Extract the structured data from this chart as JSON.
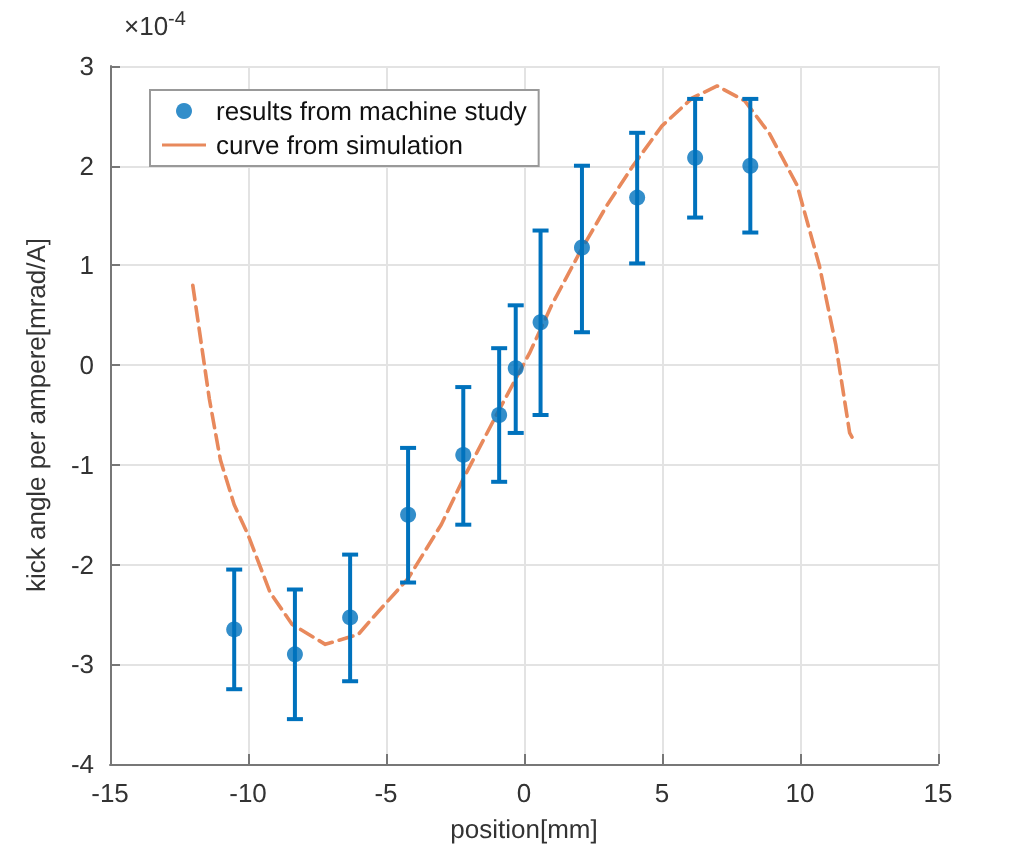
{
  "chart_data": {
    "type": "scatter",
    "xlabel": "position[mm]",
    "ylabel": "kick angle per ampere[mrad/A]",
    "annotations": [
      "×10$^{-4}$"
    ],
    "xlim": [
      -15,
      15
    ],
    "xticks": [
      -15,
      -10,
      -5,
      0,
      5,
      10,
      15
    ],
    "ylim": [
      -4,
      3
    ],
    "yticks": [
      -4,
      -3,
      -2,
      -1,
      0,
      1,
      2,
      3
    ],
    "grid": true,
    "legend": "top left",
    "series": [
      {
        "name": "results from machine study",
        "color": "#0072bd",
        "marker": "circle",
        "x": [
          -10.5,
          -8.3,
          -6.3,
          -4.2,
          -2.2,
          -0.9,
          -0.3,
          0.6,
          2.1,
          4.1,
          6.2,
          8.2
        ],
        "values": [
          -2.65,
          -2.9,
          -2.53,
          -1.5,
          -0.9,
          -0.5,
          -0.03,
          0.43,
          1.18,
          1.68,
          2.08,
          2.0
        ],
        "errors": [
          [
            -3.25,
            -2.05
          ],
          [
            -3.55,
            -2.25
          ],
          [
            -3.17,
            -1.9
          ],
          [
            -2.18,
            -0.83
          ],
          [
            -1.6,
            -0.22
          ],
          [
            -1.17,
            0.17
          ],
          [
            -0.68,
            0.6
          ],
          [
            -0.5,
            1.35
          ],
          [
            0.33,
            2.0
          ],
          [
            1.02,
            2.33
          ],
          [
            1.48,
            2.67
          ],
          [
            1.33,
            2.67
          ]
        ]
      },
      {
        "name": "curve from simulation",
        "type": "line",
        "color": "#e8895c",
        "line_style": "dashed",
        "marker": "none",
        "x": [
          -12,
          -11.4,
          -11,
          -10.5,
          -10,
          -9.2,
          -8.4,
          -7.2,
          -6,
          -5.5,
          -4.2,
          -3,
          -2.2,
          -1,
          0.2,
          1,
          2,
          3,
          3.95,
          5,
          6.1,
          7,
          8,
          8.9,
          9.9,
          10.7,
          11.3,
          11.8,
          12
        ],
        "values": [
          0.8,
          -0.34,
          -0.95,
          -1.4,
          -1.7,
          -2.28,
          -2.6,
          -2.8,
          -2.7,
          -2.54,
          -2.14,
          -1.6,
          -1.14,
          -0.5,
          0.12,
          0.6,
          1.12,
          1.6,
          2.0,
          2.4,
          2.68,
          2.8,
          2.65,
          2.32,
          1.8,
          1.0,
          0.2,
          -0.68,
          -0.78
        ]
      }
    ]
  }
}
